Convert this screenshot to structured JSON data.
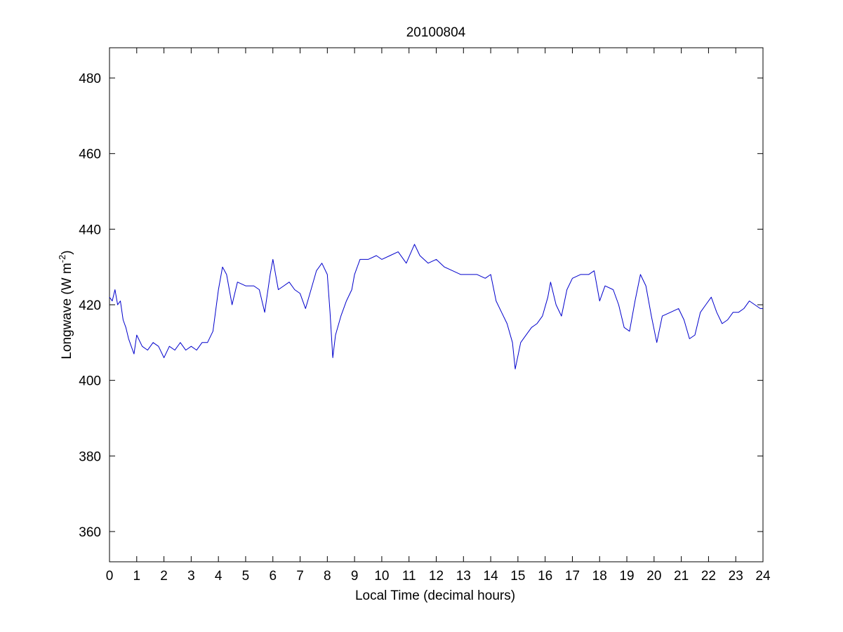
{
  "chart_data": {
    "type": "line",
    "title": "20100804",
    "xlabel": "Local Time (decimal hours)",
    "ylabel": {
      "prefix": "Longwave (W m",
      "superscript": "-2",
      "suffix": ")"
    },
    "xlim": [
      0,
      24
    ],
    "ylim": [
      352,
      488
    ],
    "xticks": [
      0,
      1,
      2,
      3,
      4,
      5,
      6,
      7,
      8,
      9,
      10,
      11,
      12,
      13,
      14,
      15,
      16,
      17,
      18,
      19,
      20,
      21,
      22,
      23,
      24
    ],
    "yticks": [
      360,
      380,
      400,
      420,
      440,
      460,
      480
    ],
    "grid": false,
    "line_color": "#0000cc",
    "series": [
      {
        "x": [
          0,
          0.1,
          0.2,
          0.3,
          0.4,
          0.5,
          0.6,
          0.7,
          0.8,
          0.9,
          1.0,
          1.2,
          1.4,
          1.6,
          1.8,
          2.0,
          2.2,
          2.4,
          2.6,
          2.8,
          3.0,
          3.2,
          3.4,
          3.6,
          3.8,
          4.0,
          4.15,
          4.3,
          4.5,
          4.7,
          5.0,
          5.3,
          5.5,
          5.7,
          5.9,
          6.0,
          6.2,
          6.4,
          6.6,
          6.8,
          7.0,
          7.2,
          7.4,
          7.6,
          7.8,
          8.0,
          8.1,
          8.2,
          8.3,
          8.5,
          8.7,
          8.9,
          9.0,
          9.2,
          9.5,
          9.8,
          10.0,
          10.3,
          10.6,
          10.9,
          11.2,
          11.4,
          11.7,
          12.0,
          12.3,
          12.6,
          12.9,
          13.2,
          13.5,
          13.8,
          14.0,
          14.2,
          14.4,
          14.6,
          14.8,
          14.9,
          15.1,
          15.3,
          15.5,
          15.7,
          15.9,
          16.1,
          16.2,
          16.4,
          16.6,
          16.8,
          17.0,
          17.3,
          17.6,
          17.8,
          18.0,
          18.2,
          18.5,
          18.7,
          18.9,
          19.1,
          19.3,
          19.5,
          19.7,
          19.9,
          20.1,
          20.3,
          20.6,
          20.9,
          21.1,
          21.3,
          21.5,
          21.7,
          21.9,
          22.1,
          22.3,
          22.5,
          22.7,
          22.9,
          23.1,
          23.3,
          23.5,
          23.7,
          23.9,
          24.0
        ],
        "y": [
          422,
          421,
          424,
          420,
          421,
          416,
          414,
          411,
          409,
          407,
          412,
          409,
          408,
          410,
          409,
          406,
          409,
          408,
          410,
          408,
          409,
          408,
          410,
          410,
          413,
          424,
          430,
          428,
          420,
          426,
          425,
          425,
          424,
          418,
          428,
          432,
          424,
          425,
          426,
          424,
          423,
          419,
          424,
          429,
          431,
          428,
          418,
          406,
          412,
          417,
          421,
          424,
          428,
          432,
          432,
          433,
          432,
          433,
          434,
          431,
          436,
          433,
          431,
          432,
          430,
          429,
          428,
          428,
          428,
          427,
          428,
          421,
          418,
          415,
          410,
          403,
          410,
          412,
          414,
          415,
          417,
          422,
          426,
          420,
          417,
          424,
          427,
          428,
          428,
          429,
          421,
          425,
          424,
          420,
          414,
          413,
          421,
          428,
          425,
          417,
          410,
          417,
          418,
          419,
          416,
          411,
          412,
          418,
          420,
          422,
          418,
          415,
          416,
          418,
          418,
          419,
          421,
          420,
          419,
          419
        ]
      }
    ]
  }
}
